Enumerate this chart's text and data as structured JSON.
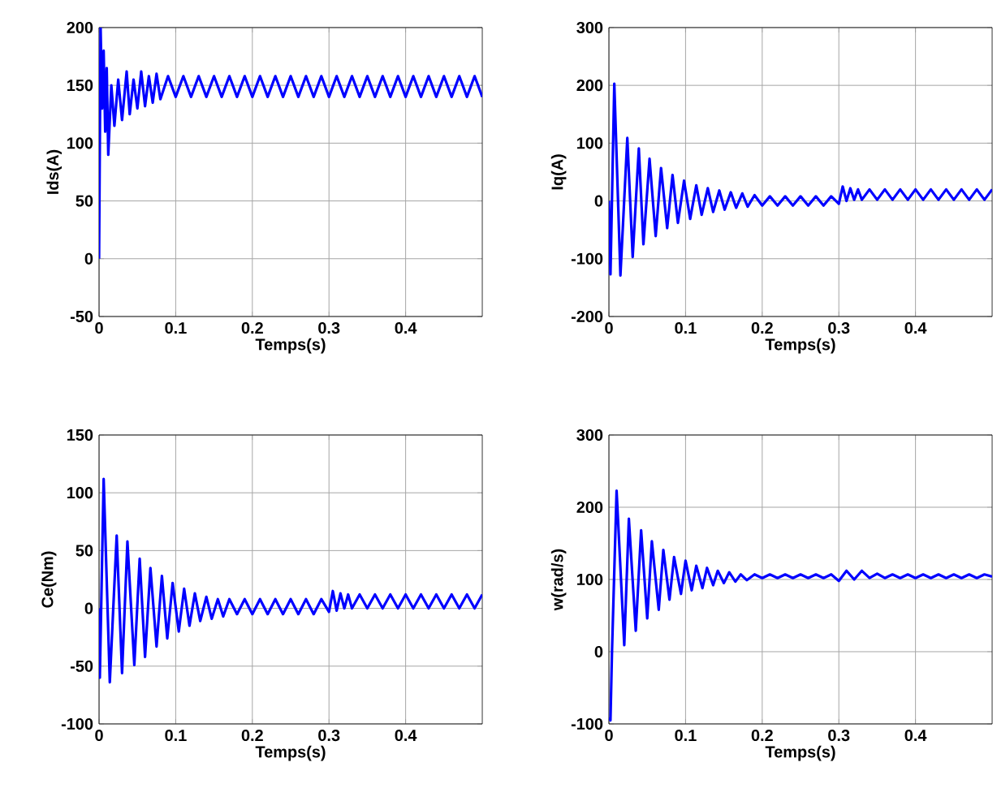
{
  "chart_data": [
    {
      "type": "line",
      "xlabel": "Temps(s)",
      "ylabel": "Ids(A)",
      "xlim": [
        0,
        0.5
      ],
      "xticks": [
        0,
        0.1,
        0.2,
        0.3,
        0.4
      ],
      "ylim": [
        -50,
        200
      ],
      "yticks": [
        -50,
        0,
        50,
        100,
        150,
        200
      ],
      "grid": true,
      "x": [
        0,
        0.001,
        0.002,
        0.004,
        0.006,
        0.008,
        0.01,
        0.012,
        0.016,
        0.02,
        0.025,
        0.03,
        0.036,
        0.04,
        0.045,
        0.05,
        0.055,
        0.06,
        0.065,
        0.07,
        0.075,
        0.08,
        0.09,
        0.1,
        0.11,
        0.12,
        0.13,
        0.14,
        0.15,
        0.16,
        0.17,
        0.18,
        0.19,
        0.2,
        0.21,
        0.22,
        0.23,
        0.24,
        0.25,
        0.26,
        0.27,
        0.28,
        0.29,
        0.3,
        0.31,
        0.32,
        0.33,
        0.34,
        0.35,
        0.36,
        0.37,
        0.38,
        0.39,
        0.4,
        0.41,
        0.42,
        0.43,
        0.44,
        0.45,
        0.46,
        0.47,
        0.48,
        0.49,
        0.5
      ],
      "series": [
        {
          "color": "#0000ff",
          "values": [
            0,
            100,
            200,
            130,
            180,
            110,
            165,
            90,
            150,
            115,
            155,
            120,
            162,
            125,
            155,
            130,
            162,
            132,
            158,
            135,
            160,
            138,
            158,
            140,
            158,
            140,
            158,
            140,
            158,
            140,
            158,
            140,
            158,
            140,
            158,
            140,
            158,
            140,
            158,
            140,
            158,
            140,
            158,
            140,
            158,
            140,
            158,
            140,
            158,
            140,
            158,
            140,
            158,
            140,
            158,
            140,
            158,
            140,
            158,
            140,
            158,
            140,
            158,
            140
          ]
        }
      ]
    },
    {
      "type": "line",
      "xlabel": "Temps(s)",
      "ylabel": "Iq(A)",
      "xlim": [
        0,
        0.5
      ],
      "xticks": [
        0,
        0.1,
        0.2,
        0.3,
        0.4
      ],
      "ylim": [
        -200,
        300
      ],
      "yticks": [
        -200,
        -100,
        0,
        100,
        200,
        300
      ],
      "grid": true,
      "x": [
        0,
        0.002,
        0.007,
        0.015,
        0.024,
        0.031,
        0.039,
        0.045,
        0.053,
        0.061,
        0.068,
        0.076,
        0.083,
        0.09,
        0.098,
        0.106,
        0.114,
        0.121,
        0.129,
        0.136,
        0.144,
        0.151,
        0.159,
        0.166,
        0.174,
        0.181,
        0.19,
        0.2,
        0.21,
        0.22,
        0.23,
        0.24,
        0.25,
        0.26,
        0.27,
        0.28,
        0.29,
        0.3,
        0.305,
        0.31,
        0.315,
        0.32,
        0.325,
        0.33,
        0.34,
        0.35,
        0.36,
        0.37,
        0.38,
        0.39,
        0.4,
        0.41,
        0.42,
        0.43,
        0.44,
        0.45,
        0.46,
        0.47,
        0.48,
        0.49,
        0.5
      ],
      "series": [
        {
          "color": "#0000ff",
          "values": [
            0,
            -127,
            203,
            -129,
            109,
            -97,
            91,
            -75,
            73,
            -61,
            57,
            -47,
            45,
            -38,
            35,
            -31,
            27,
            -24,
            22,
            -19,
            18,
            -15,
            15,
            -12,
            13,
            -10,
            10,
            -8,
            8,
            -8,
            8,
            -8,
            8,
            -8,
            8,
            -8,
            8,
            -5,
            25,
            0,
            22,
            2,
            20,
            2,
            20,
            2,
            20,
            2,
            20,
            2,
            20,
            2,
            20,
            2,
            20,
            2,
            20,
            2,
            20,
            2,
            20
          ]
        }
      ]
    },
    {
      "type": "line",
      "xlabel": "Temps(s)",
      "ylabel": "Ce(Nm)",
      "xlim": [
        0,
        0.5
      ],
      "xticks": [
        0,
        0.1,
        0.2,
        0.3,
        0.4
      ],
      "ylim": [
        -100,
        150
      ],
      "yticks": [
        -100,
        -50,
        0,
        50,
        100,
        150
      ],
      "grid": true,
      "x": [
        0,
        0.001,
        0.006,
        0.014,
        0.023,
        0.03,
        0.037,
        0.046,
        0.053,
        0.06,
        0.067,
        0.075,
        0.082,
        0.089,
        0.096,
        0.104,
        0.111,
        0.118,
        0.125,
        0.132,
        0.14,
        0.147,
        0.155,
        0.162,
        0.17,
        0.18,
        0.19,
        0.2,
        0.21,
        0.22,
        0.23,
        0.24,
        0.25,
        0.26,
        0.27,
        0.28,
        0.29,
        0.3,
        0.305,
        0.31,
        0.315,
        0.32,
        0.325,
        0.33,
        0.34,
        0.35,
        0.36,
        0.37,
        0.38,
        0.39,
        0.4,
        0.41,
        0.42,
        0.43,
        0.44,
        0.45,
        0.46,
        0.47,
        0.48,
        0.49,
        0.5
      ],
      "series": [
        {
          "color": "#0000ff",
          "values": [
            0,
            -60,
            112,
            -64,
            63,
            -56,
            58,
            -49,
            43,
            -42,
            35,
            -33,
            28,
            -26,
            22,
            -20,
            17,
            -15,
            13,
            -11,
            10,
            -9,
            8,
            -7,
            8,
            -5,
            8,
            -5,
            8,
            -5,
            8,
            -5,
            8,
            -5,
            8,
            -5,
            8,
            -3,
            15,
            -2,
            13,
            0,
            12,
            0,
            12,
            0,
            12,
            0,
            12,
            0,
            12,
            0,
            12,
            0,
            12,
            0,
            12,
            0,
            12,
            0,
            12
          ]
        }
      ]
    },
    {
      "type": "line",
      "xlabel": "Temps(s)",
      "ylabel": "w(rad/s)",
      "xlim": [
        0,
        0.5
      ],
      "xticks": [
        0,
        0.1,
        0.2,
        0.3,
        0.4
      ],
      "ylim": [
        -100,
        300
      ],
      "yticks": [
        -100,
        0,
        100,
        200,
        300
      ],
      "grid": true,
      "x": [
        0,
        0.002,
        0.004,
        0.01,
        0.02,
        0.026,
        0.035,
        0.042,
        0.05,
        0.056,
        0.065,
        0.071,
        0.079,
        0.085,
        0.094,
        0.1,
        0.108,
        0.114,
        0.122,
        0.128,
        0.136,
        0.142,
        0.15,
        0.157,
        0.165,
        0.172,
        0.18,
        0.19,
        0.2,
        0.21,
        0.22,
        0.23,
        0.24,
        0.25,
        0.26,
        0.27,
        0.28,
        0.29,
        0.3,
        0.31,
        0.32,
        0.33,
        0.34,
        0.35,
        0.36,
        0.37,
        0.38,
        0.39,
        0.4,
        0.41,
        0.42,
        0.43,
        0.44,
        0.45,
        0.46,
        0.47,
        0.48,
        0.49,
        0.5
      ],
      "series": [
        {
          "color": "#0000ff",
          "values": [
            -91,
            -95,
            0,
            223,
            9,
            184,
            29,
            168,
            46,
            153,
            58,
            141,
            72,
            131,
            80,
            126,
            85,
            119,
            88,
            116,
            92,
            112,
            95,
            110,
            97,
            107,
            99,
            107,
            102,
            107,
            102,
            107,
            102,
            107,
            102,
            107,
            102,
            107,
            98,
            112,
            100,
            112,
            102,
            108,
            102,
            107,
            102,
            107,
            102,
            107,
            102,
            107,
            102,
            107,
            102,
            107,
            102,
            107,
            104
          ]
        }
      ]
    }
  ]
}
